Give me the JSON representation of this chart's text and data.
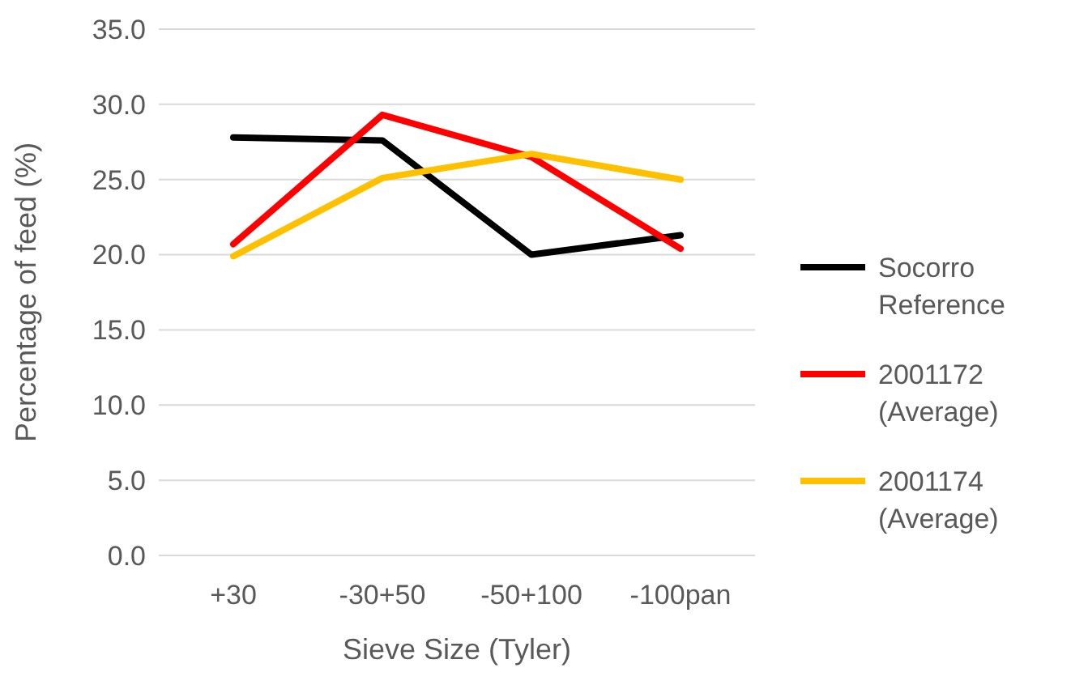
{
  "chart_data": {
    "type": "line",
    "xlabel": "Sieve Size (Tyler)",
    "ylabel": "Percentage of feed (%)",
    "categories": [
      "+30",
      "-30+50",
      "-50+100",
      "-100pan"
    ],
    "ylim": [
      0,
      35
    ],
    "yticks": [
      {
        "value": 0,
        "label": "0.0"
      },
      {
        "value": 5,
        "label": "5.0"
      },
      {
        "value": 10,
        "label": "10.0"
      },
      {
        "value": 15,
        "label": "15.0"
      },
      {
        "value": 20,
        "label": "20.0"
      },
      {
        "value": 25,
        "label": "25.0"
      },
      {
        "value": 30,
        "label": "30.0"
      },
      {
        "value": 35,
        "label": "35.0"
      }
    ],
    "grid": "y",
    "legend": "right",
    "marker": "none",
    "line_style": "solid",
    "series": [
      {
        "name": "Socorro Reference",
        "color": "#000000",
        "values": [
          27.8,
          27.6,
          20.0,
          21.3
        ]
      },
      {
        "name": "2001172 (Average)",
        "color": "#ff0000",
        "values": [
          20.7,
          29.3,
          26.5,
          20.4
        ]
      },
      {
        "name": "2001174 (Average)",
        "color": "#ffc000",
        "values": [
          19.9,
          25.1,
          26.7,
          25.0
        ]
      }
    ]
  }
}
